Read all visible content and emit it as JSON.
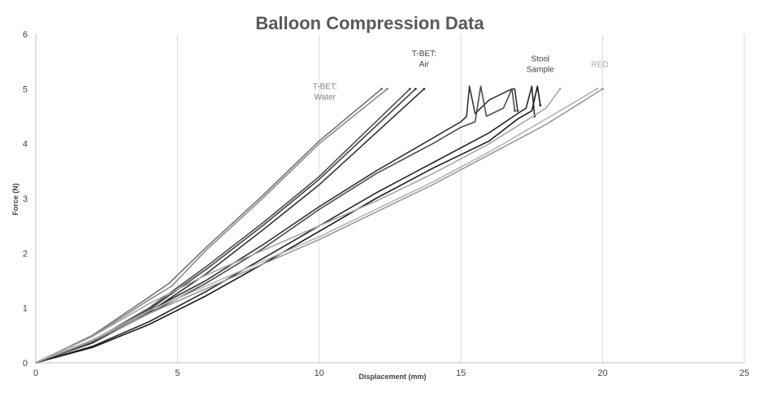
{
  "chart_data": {
    "type": "line",
    "title": "Balloon Compression Data",
    "xlabel": "Displacement (mm)",
    "ylabel": "Force (N)",
    "xlim": [
      0,
      25
    ],
    "ylim": [
      0,
      6
    ],
    "xticks": [
      0,
      5,
      10,
      15,
      20,
      25
    ],
    "yticks": [
      0,
      1,
      2,
      3,
      4,
      5,
      6
    ],
    "grid": "vertical",
    "legend": "none",
    "annotations": [
      {
        "text": [
          "T-BET:",
          "Water"
        ],
        "x": 10.2,
        "y": 5.0,
        "color": "#7f7f7f"
      },
      {
        "text": [
          "T-BET:",
          "Air"
        ],
        "x": 13.7,
        "y": 5.6,
        "color": "#404040"
      },
      {
        "text": [
          "Stool",
          "Sample"
        ],
        "x": 17.8,
        "y": 5.5,
        "color": "#404040"
      },
      {
        "text": [
          "RED"
        ],
        "x": 19.9,
        "y": 5.4,
        "color": "#a6a6a6"
      }
    ],
    "series": [
      {
        "group": "T-BET: Water",
        "color": "#737373",
        "x": [
          0,
          2,
          4,
          4.7,
          6,
          8,
          10,
          12.2
        ],
        "y": [
          0,
          0.5,
          1.2,
          1.45,
          2.1,
          3.05,
          4.05,
          5.0
        ]
      },
      {
        "group": "T-BET: Water",
        "color": "#8c8c8c",
        "x": [
          0,
          2,
          4,
          4.8,
          6,
          8,
          10,
          12.4
        ],
        "y": [
          0,
          0.48,
          1.15,
          1.4,
          2.05,
          3.0,
          4.0,
          5.0
        ]
      },
      {
        "group": "T-BET: Air",
        "color": "#4d4d4d",
        "x": [
          0,
          2,
          4,
          6,
          8,
          10,
          13.2
        ],
        "y": [
          0,
          0.4,
          1.0,
          1.75,
          2.55,
          3.4,
          5.0
        ]
      },
      {
        "group": "T-BET: Air",
        "color": "#404040",
        "x": [
          0,
          2,
          4,
          6,
          8,
          10,
          13.4
        ],
        "y": [
          0,
          0.38,
          0.97,
          1.7,
          2.5,
          3.35,
          5.0
        ]
      },
      {
        "group": "T-BET: Air",
        "color": "#333333",
        "x": [
          0,
          2,
          4,
          6,
          8,
          10,
          13.7
        ],
        "y": [
          0,
          0.36,
          0.92,
          1.62,
          2.42,
          3.25,
          5.0
        ]
      },
      {
        "group": "Stool Sample",
        "color": "#333333",
        "x": [
          0,
          2,
          4,
          6,
          8,
          10,
          12,
          14,
          15,
          15.2,
          15.3,
          15.5,
          16,
          16.8,
          16.9,
          17.0
        ],
        "y": [
          0,
          0.4,
          0.95,
          1.5,
          2.15,
          2.85,
          3.5,
          4.1,
          4.4,
          4.5,
          5.05,
          4.55,
          4.8,
          5.0,
          5.0,
          4.6
        ]
      },
      {
        "group": "Stool Sample",
        "color": "#4d4d4d",
        "x": [
          0,
          2,
          4,
          6,
          8,
          10,
          12,
          14,
          15,
          15.5,
          15.7,
          15.9,
          16.5,
          16.8,
          16.9
        ],
        "y": [
          0,
          0.38,
          0.9,
          1.45,
          2.08,
          2.8,
          3.45,
          4.0,
          4.3,
          4.4,
          5.05,
          4.5,
          4.65,
          5.0,
          4.6
        ]
      },
      {
        "group": "Stool Sample",
        "color": "#262626",
        "x": [
          0,
          2,
          4,
          6,
          8,
          10,
          12,
          14,
          16,
          17,
          17.3,
          17.5,
          17.6
        ],
        "y": [
          0,
          0.3,
          0.75,
          1.3,
          1.9,
          2.5,
          3.1,
          3.65,
          4.2,
          4.55,
          4.65,
          5.05,
          4.5
        ]
      },
      {
        "group": "Stool Sample",
        "color": "#1a1a1a",
        "x": [
          0,
          2,
          4,
          6,
          8,
          10,
          12,
          14,
          16,
          17,
          17.5,
          17.7,
          17.8
        ],
        "y": [
          0,
          0.28,
          0.7,
          1.22,
          1.8,
          2.4,
          3.0,
          3.55,
          4.05,
          4.45,
          4.6,
          5.05,
          4.7
        ]
      },
      {
        "group": "RED",
        "color": "#a6a6a6",
        "x": [
          0,
          2,
          4,
          6,
          8,
          10,
          12,
          14,
          16,
          18,
          18.5
        ],
        "y": [
          0,
          0.48,
          1.08,
          1.6,
          2.05,
          2.5,
          2.95,
          3.45,
          4.0,
          4.65,
          5.0
        ]
      },
      {
        "group": "RED",
        "color": "#b3b3b3",
        "x": [
          0,
          2,
          4,
          6,
          8,
          10,
          12,
          14,
          16,
          18,
          19.8
        ],
        "y": [
          0,
          0.42,
          0.95,
          1.4,
          1.85,
          2.3,
          2.8,
          3.3,
          3.85,
          4.45,
          5.0
        ]
      },
      {
        "group": "RED",
        "color": "#999999",
        "x": [
          0,
          2,
          4,
          6,
          8,
          10,
          12,
          14,
          16,
          18,
          20.0
        ],
        "y": [
          0,
          0.4,
          0.9,
          1.35,
          1.8,
          2.25,
          2.75,
          3.25,
          3.8,
          4.35,
          5.0
        ]
      }
    ]
  }
}
